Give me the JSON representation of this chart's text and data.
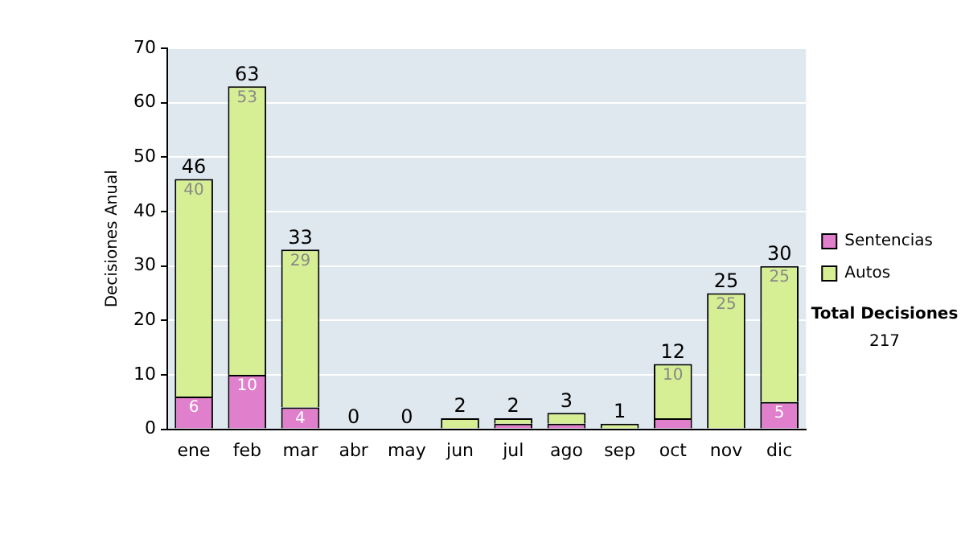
{
  "chart_data": {
    "type": "bar",
    "stacked": true,
    "ylabel": "Decisiones Anual",
    "categories": [
      "ene",
      "feb",
      "mar",
      "abr",
      "may",
      "jun",
      "jul",
      "ago",
      "sep",
      "oct",
      "nov",
      "dic"
    ],
    "series": [
      {
        "name": "Sentencias",
        "color": "#e07fcb",
        "values": [
          6,
          10,
          4,
          0,
          0,
          0,
          1,
          1,
          0,
          2,
          0,
          5
        ],
        "value_labels": [
          "6",
          "10",
          "4",
          null,
          null,
          null,
          null,
          null,
          null,
          null,
          null,
          "5"
        ]
      },
      {
        "name": "Autos",
        "color": "#d6ee94",
        "values": [
          40,
          53,
          29,
          0,
          0,
          2,
          1,
          2,
          1,
          10,
          25,
          25
        ],
        "value_labels": [
          "40",
          "53",
          "29",
          null,
          null,
          null,
          null,
          null,
          null,
          "10",
          "25",
          "25"
        ]
      }
    ],
    "totals": [
      "46",
      "63",
      "33",
      "0",
      "0",
      "2",
      "2",
      "3",
      "1",
      "12",
      "25",
      "30"
    ],
    "ylim": [
      0,
      70
    ],
    "yticks": [
      0,
      10,
      20,
      30,
      40,
      50,
      60,
      70
    ],
    "grid": "y",
    "legend": "right",
    "annotations": [
      "Total Decisiones",
      "217"
    ]
  }
}
